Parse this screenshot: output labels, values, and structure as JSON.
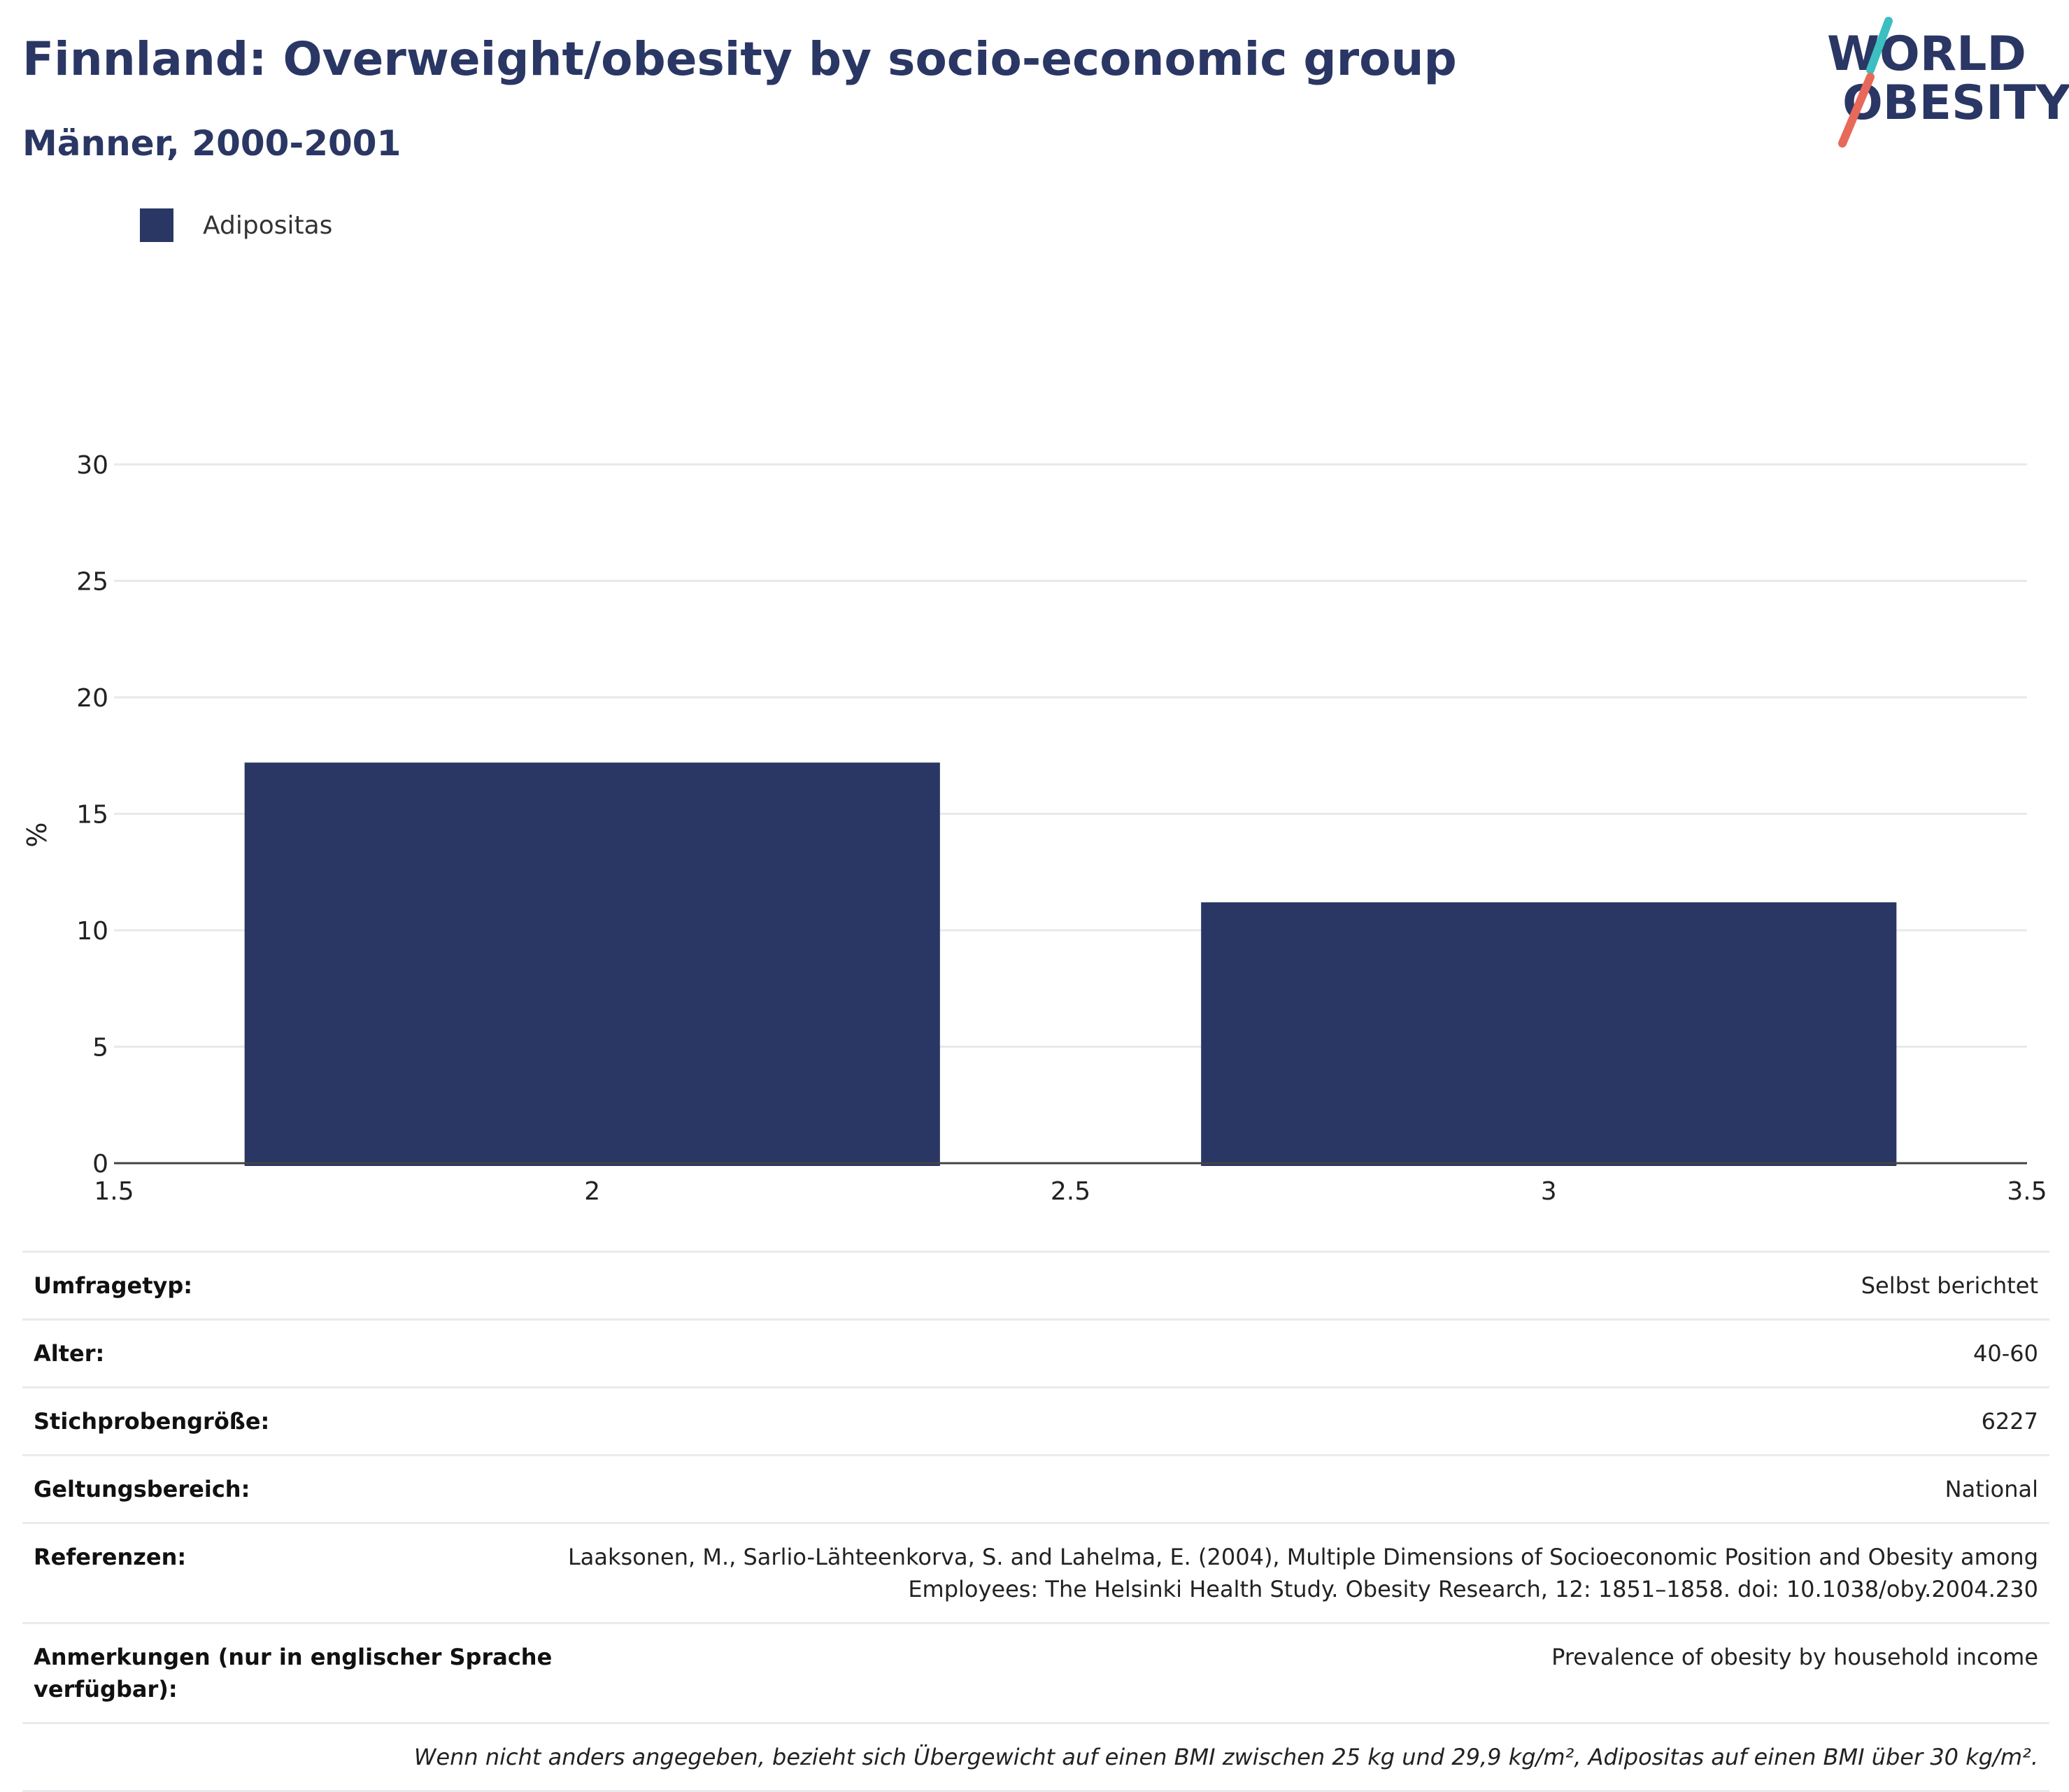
{
  "header": {
    "title": "Finnland: Overweight/obesity by socio-economic group",
    "subtitle": "Männer, 2000-2001"
  },
  "logo": {
    "line1": "WORLD",
    "line2": "OBESITY",
    "text_color": "#2a3764",
    "slash_top_color": "#3bbfc1",
    "slash_bottom_color": "#e8695a"
  },
  "colors": {
    "bar": "#2a3764",
    "grid": "#e8e8ee",
    "axis": "#444444"
  },
  "chart_data": {
    "type": "bar",
    "title": "Finnland: Overweight/obesity by socio-economic group",
    "subtitle": "Männer, 2000-2001",
    "xlabel": "",
    "ylabel": "%",
    "x": [
      2,
      3
    ],
    "series": [
      {
        "name": "Adipositas",
        "values": [
          17.2,
          11.2
        ]
      }
    ],
    "xlim": [
      1.5,
      3.5
    ],
    "ylim": [
      0,
      30
    ],
    "xticks": [
      "1.5",
      "2",
      "2.5",
      "3",
      "3.5"
    ],
    "yticks": [
      "0",
      "5",
      "10",
      "15",
      "20",
      "25",
      "30"
    ],
    "legend_position": "top-left",
    "grid": true
  },
  "info": {
    "rows": [
      {
        "label": "Umfragetyp:",
        "value": "Selbst berichtet"
      },
      {
        "label": "Alter:",
        "value": "40-60"
      },
      {
        "label": "Stichprobengröße:",
        "value": "6227"
      },
      {
        "label": "Geltungsbereich:",
        "value": "National"
      },
      {
        "label": "Referenzen:",
        "value_lines": [
          "Laaksonen, M., Sarlio-Lähteenkorva, S. and Lahelma, E. (2004), Multiple Dimensions of Socioeconomic Position and Obesity among",
          "Employees: The Helsinki Health Study. Obesity Research, 12: 1851–1858. doi: 10.1038/oby.2004.230"
        ]
      },
      {
        "label_lines": [
          "Anmerkungen (nur in englischer Sprache",
          "verfügbar):"
        ],
        "value": "Prevalence of obesity by household income"
      }
    ],
    "footnote": "Wenn nicht anders angegeben, bezieht sich Übergewicht auf einen BMI zwischen 25 kg und 29,9 kg/m², Adipositas auf einen BMI über 30 kg/m²."
  }
}
